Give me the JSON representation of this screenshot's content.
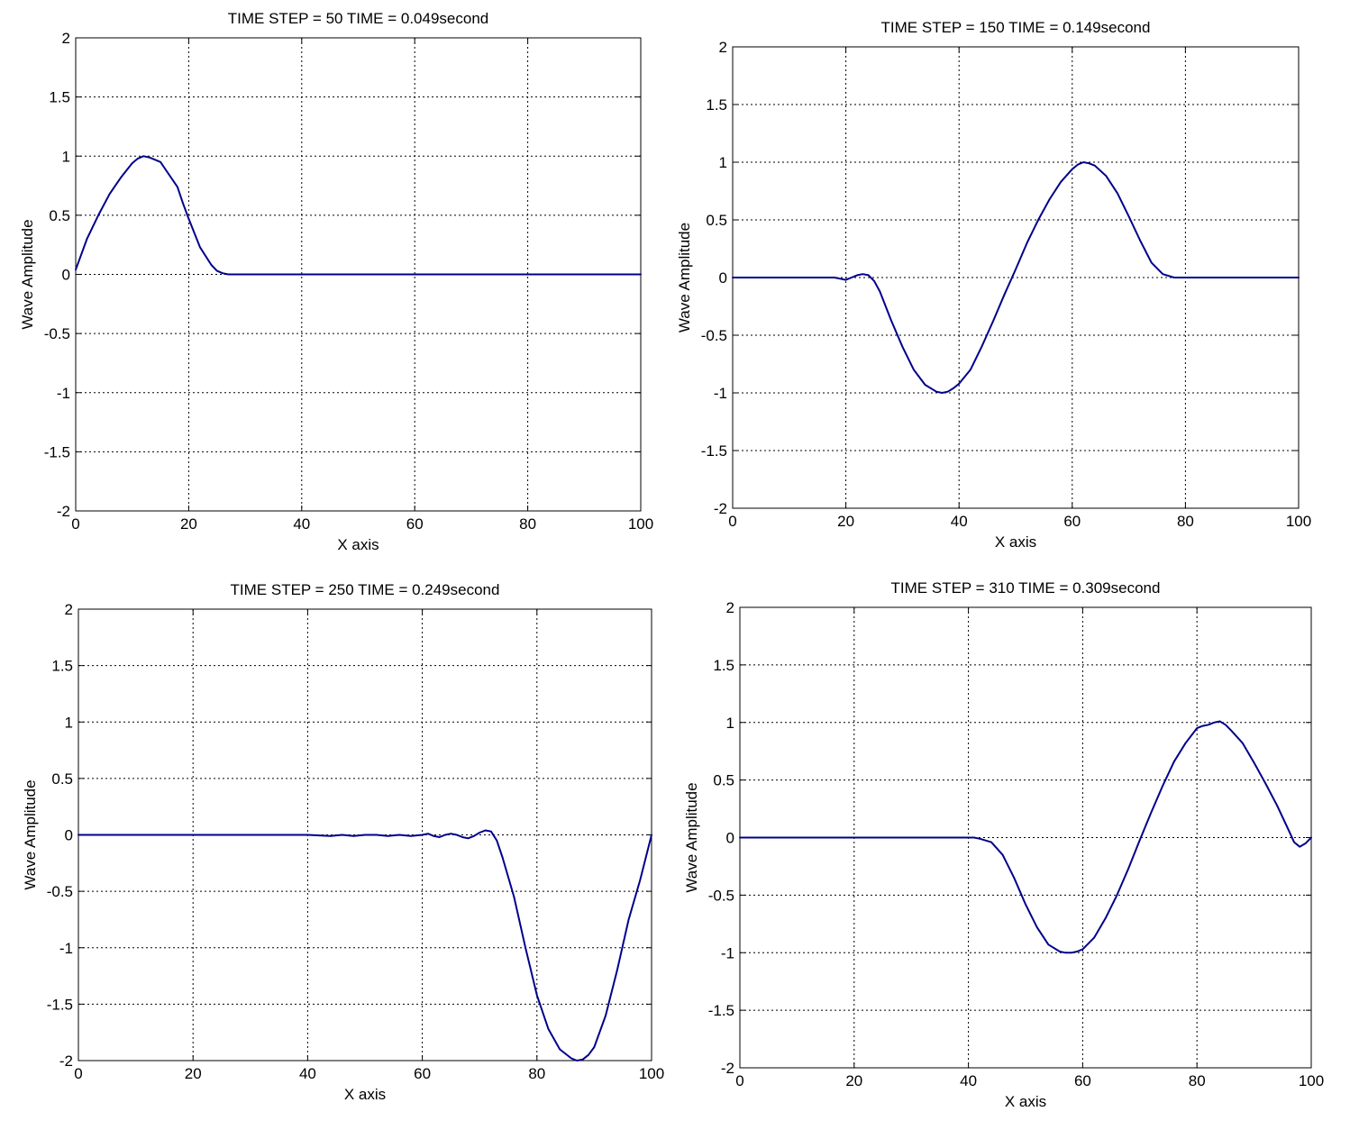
{
  "colors": {
    "series": "#00008b",
    "axes": "#000000",
    "background": "#ffffff"
  },
  "chart_data": [
    {
      "type": "line",
      "title": "TIME STEP = 50 TIME = 0.049second",
      "xlabel": "X axis",
      "ylabel": "Wave Amplitude",
      "xlim": [
        0,
        100
      ],
      "ylim": [
        -2,
        2
      ],
      "xticks": [
        "0",
        "20",
        "40",
        "60",
        "80",
        "100"
      ],
      "yticks": [
        "-2",
        "-1.5",
        "-1",
        "-0.5",
        "0",
        "0.5",
        "1",
        "1.5",
        "2"
      ],
      "grid": true,
      "series": [
        {
          "x": [
            0,
            2,
            4,
            6,
            8,
            10,
            11,
            12,
            13,
            14,
            15,
            16,
            18,
            19,
            20,
            22,
            24,
            25,
            26,
            27,
            30,
            40,
            50,
            60,
            70,
            80,
            90,
            100
          ],
          "y": [
            0.04,
            0.3,
            0.5,
            0.68,
            0.82,
            0.94,
            0.98,
            1.0,
            0.99,
            0.97,
            0.95,
            0.88,
            0.74,
            0.6,
            0.47,
            0.23,
            0.08,
            0.03,
            0.01,
            0.0,
            0.0,
            0.0,
            0.0,
            0.0,
            0.0,
            0.0,
            0.0,
            0.0
          ]
        }
      ]
    },
    {
      "type": "line",
      "title": "TIME STEP = 150 TIME = 0.149second",
      "xlabel": "X axis",
      "ylabel": "Wave Amplitude",
      "xlim": [
        0,
        100
      ],
      "ylim": [
        -2,
        2
      ],
      "xticks": [
        "0",
        "20",
        "40",
        "60",
        "80",
        "100"
      ],
      "yticks": [
        "-2",
        "-1.5",
        "-1",
        "-0.5",
        "0",
        "0.5",
        "1",
        "1.5",
        "2"
      ],
      "grid": true,
      "series": [
        {
          "x": [
            0,
            5,
            10,
            15,
            18,
            19,
            20,
            21,
            22,
            23,
            24,
            25,
            26,
            28,
            30,
            32,
            34,
            36,
            37,
            38,
            39,
            40,
            42,
            44,
            46,
            48,
            50,
            52,
            54,
            56,
            58,
            60,
            61,
            62,
            63,
            64,
            66,
            68,
            70,
            72,
            74,
            76,
            78,
            80,
            85,
            90,
            95,
            100
          ],
          "y": [
            0.0,
            0.0,
            0.0,
            0.0,
            0.0,
            -0.01,
            -0.02,
            0.0,
            0.02,
            0.03,
            0.02,
            -0.03,
            -0.12,
            -0.37,
            -0.6,
            -0.8,
            -0.93,
            -0.99,
            -1.0,
            -0.99,
            -0.96,
            -0.92,
            -0.8,
            -0.6,
            -0.38,
            -0.15,
            0.07,
            0.3,
            0.5,
            0.68,
            0.83,
            0.94,
            0.98,
            1.0,
            0.99,
            0.97,
            0.88,
            0.73,
            0.53,
            0.32,
            0.13,
            0.03,
            0.0,
            0.0,
            0.0,
            0.0,
            0.0,
            0.0
          ]
        }
      ]
    },
    {
      "type": "line",
      "title": "TIME STEP = 250 TIME = 0.249second",
      "xlabel": "X axis",
      "ylabel": "Wave Amplitude",
      "xlim": [
        0,
        100
      ],
      "ylim": [
        -2,
        2
      ],
      "xticks": [
        "0",
        "20",
        "40",
        "60",
        "80",
        "100"
      ],
      "yticks": [
        "-2",
        "-1.5",
        "-1",
        "-0.5",
        "0",
        "0.5",
        "1",
        "1.5",
        "2"
      ],
      "grid": true,
      "series": [
        {
          "x": [
            0,
            10,
            20,
            30,
            40,
            44,
            46,
            48,
            50,
            52,
            54,
            56,
            58,
            60,
            61,
            62,
            63,
            64,
            65,
            66,
            67,
            68,
            69,
            70,
            71,
            72,
            73,
            74,
            76,
            78,
            80,
            82,
            84,
            86,
            87,
            88,
            89,
            90,
            92,
            94,
            96,
            98,
            100
          ],
          "y": [
            0.0,
            0.0,
            0.0,
            0.0,
            0.0,
            -0.01,
            0.0,
            -0.01,
            0.0,
            0.0,
            -0.01,
            0.0,
            -0.01,
            0.0,
            0.01,
            -0.01,
            -0.02,
            0.0,
            0.01,
            0.0,
            -0.02,
            -0.03,
            -0.01,
            0.02,
            0.04,
            0.03,
            -0.05,
            -0.2,
            -0.55,
            -1.0,
            -1.42,
            -1.72,
            -1.9,
            -1.98,
            -2.0,
            -1.99,
            -1.95,
            -1.88,
            -1.6,
            -1.2,
            -0.75,
            -0.4,
            0.0
          ]
        }
      ]
    },
    {
      "type": "line",
      "title": "TIME STEP = 310 TIME = 0.309second",
      "xlabel": "X axis",
      "ylabel": "Wave Amplitude",
      "xlim": [
        0,
        100
      ],
      "ylim": [
        -2,
        2
      ],
      "xticks": [
        "0",
        "20",
        "40",
        "60",
        "80",
        "100"
      ],
      "yticks": [
        "-2",
        "-1.5",
        "-1",
        "-0.5",
        "0",
        "0.5",
        "1",
        "1.5",
        "2"
      ],
      "grid": true,
      "series": [
        {
          "x": [
            0,
            10,
            20,
            30,
            40,
            41,
            42,
            44,
            46,
            48,
            50,
            52,
            54,
            56,
            57,
            58,
            59,
            60,
            62,
            64,
            66,
            68,
            70,
            72,
            74,
            76,
            78,
            80,
            81,
            82,
            83,
            84,
            85,
            86,
            88,
            90,
            92,
            94,
            96,
            97,
            98,
            99,
            100
          ],
          "y": [
            0.0,
            0.0,
            0.0,
            0.0,
            0.0,
            0.0,
            -0.01,
            -0.04,
            -0.15,
            -0.35,
            -0.58,
            -0.78,
            -0.93,
            -0.99,
            -1.0,
            -1.0,
            -0.99,
            -0.97,
            -0.87,
            -0.7,
            -0.5,
            -0.27,
            -0.02,
            0.22,
            0.45,
            0.66,
            0.82,
            0.95,
            0.97,
            0.98,
            1.0,
            1.01,
            0.98,
            0.93,
            0.82,
            0.65,
            0.47,
            0.28,
            0.07,
            -0.04,
            -0.08,
            -0.05,
            0.0
          ]
        }
      ]
    }
  ]
}
